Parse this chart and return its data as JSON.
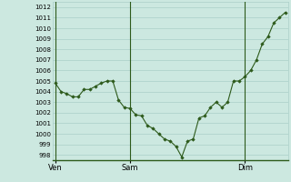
{
  "y_values": [
    1004.8,
    1004.0,
    1003.8,
    1003.5,
    1003.5,
    1004.2,
    1004.2,
    1004.5,
    1004.8,
    1005.0,
    1005.0,
    1003.2,
    1002.5,
    1002.4,
    1001.8,
    1001.7,
    1000.8,
    1000.5,
    1000.0,
    999.5,
    999.3,
    998.8,
    997.8,
    999.3,
    999.5,
    1001.5,
    1001.7,
    1002.5,
    1003.0,
    1002.5,
    1003.0,
    1005.0,
    1005.0,
    1005.4,
    1006.0,
    1007.0,
    1008.5,
    1009.2,
    1010.5,
    1011.0,
    1011.5
  ],
  "x_tick_positions": [
    0,
    13,
    33
  ],
  "x_tick_labels": [
    "Ven",
    "Sam",
    "Dim"
  ],
  "ylim": [
    997.5,
    1012.5
  ],
  "yticks": [
    998,
    999,
    1000,
    1001,
    1002,
    1003,
    1004,
    1005,
    1006,
    1007,
    1008,
    1009,
    1010,
    1011,
    1012
  ],
  "line_color": "#2d5a1b",
  "marker_color": "#2d5a1b",
  "bg_color": "#cce8e0",
  "plot_bg_color": "#cce8e0",
  "grid_color": "#aacfc8",
  "vline_color": "#2d5a1b",
  "vline_positions": [
    0,
    13,
    33
  ]
}
